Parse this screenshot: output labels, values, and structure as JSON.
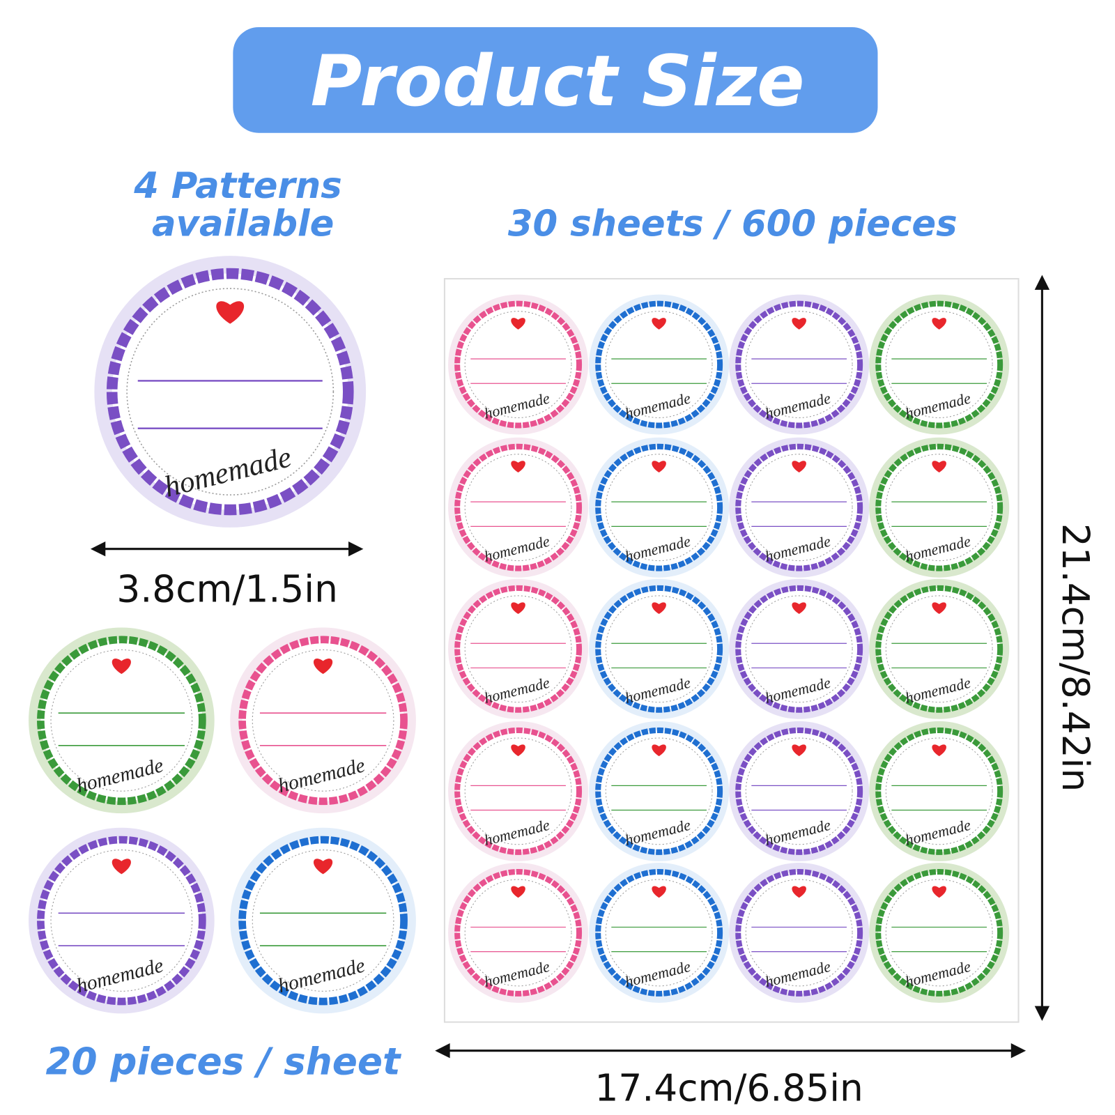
{
  "header": {
    "title": "Product Size"
  },
  "patterns": [
    "4 Patterns",
    "available"
  ],
  "sticker_width": "3.8cm/1.5in",
  "per_sheet": "20 pieces / sheet",
  "sheets": "30 sheets / 600 pieces",
  "sheet_width": "17.4cm/6.85in",
  "sheet_height": "21.4cm/8.42in",
  "sticker_text": "homemade"
}
